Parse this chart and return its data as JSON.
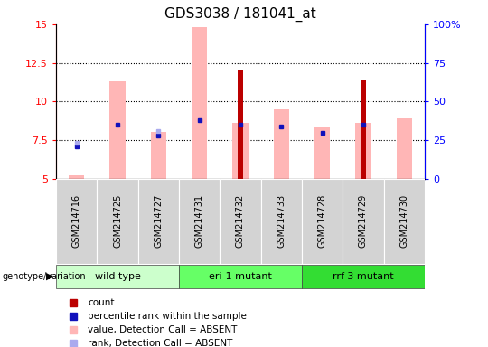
{
  "title": "GDS3038 / 181041_at",
  "samples": [
    "GSM214716",
    "GSM214725",
    "GSM214727",
    "GSM214731",
    "GSM214732",
    "GSM214733",
    "GSM214728",
    "GSM214729",
    "GSM214730"
  ],
  "groups": [
    {
      "label": "wild type",
      "indices": [
        0,
        1,
        2
      ],
      "color": "#ccffcc"
    },
    {
      "label": "eri-1 mutant",
      "indices": [
        3,
        4,
        5
      ],
      "color": "#66ff66"
    },
    {
      "label": "rrf-3 mutant",
      "indices": [
        6,
        7,
        8
      ],
      "color": "#33dd33"
    }
  ],
  "ylim_left": [
    5,
    15
  ],
  "ylim_right": [
    0,
    100
  ],
  "yticks_left": [
    5,
    7.5,
    10,
    12.5,
    15
  ],
  "ytick_labels_left": [
    "5",
    "7.5",
    "10",
    "12.5",
    "15"
  ],
  "yticks_right": [
    0,
    25,
    50,
    75,
    100
  ],
  "ytick_labels_right": [
    "0",
    "25",
    "50",
    "75",
    "100%"
  ],
  "pink_bar_values": [
    5.2,
    11.3,
    8.0,
    14.8,
    8.6,
    9.5,
    8.3,
    8.6,
    8.9
  ],
  "red_bar_values": [
    5.0,
    5.0,
    5.0,
    5.0,
    12.0,
    5.0,
    5.0,
    11.4,
    5.0
  ],
  "blue_sq_values": [
    7.1,
    8.5,
    7.8,
    8.8,
    8.5,
    8.4,
    7.95,
    8.5,
    5.0
  ],
  "light_blue_sq_values": [
    7.3,
    5.0,
    8.1,
    5.0,
    5.0,
    5.0,
    5.0,
    5.0,
    5.0
  ],
  "base": 5.0,
  "pink_bar_color": "#ffb6b6",
  "red_bar_color": "#bb0000",
  "blue_sq_color": "#1111bb",
  "light_blue_sq_color": "#aaaaee",
  "grid_yticks": [
    7.5,
    10,
    12.5
  ],
  "legend_items": [
    {
      "label": "count",
      "color": "#bb0000"
    },
    {
      "label": "percentile rank within the sample",
      "color": "#1111bb"
    },
    {
      "label": "value, Detection Call = ABSENT",
      "color": "#ffb6b6"
    },
    {
      "label": "rank, Detection Call = ABSENT",
      "color": "#aaaaee"
    }
  ],
  "fig_width": 5.4,
  "fig_height": 3.84,
  "dpi": 100
}
